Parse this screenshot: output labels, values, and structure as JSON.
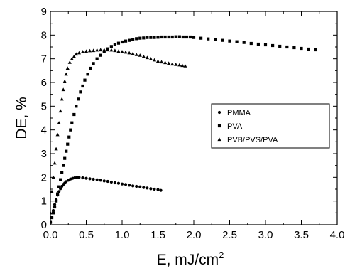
{
  "chart_data": {
    "type": "scatter",
    "xlabel": "E, mJ/cm",
    "xlabel_sup": "2",
    "ylabel": "DE, %",
    "xlim": [
      0,
      4.0
    ],
    "ylim": [
      0,
      9
    ],
    "xticks": [
      "0.0",
      "0.5",
      "1.0",
      "1.5",
      "2.0",
      "2.5",
      "3.0",
      "3.5",
      "4.0"
    ],
    "yticks": [
      "0",
      "1",
      "2",
      "3",
      "4",
      "5",
      "6",
      "7",
      "8",
      "9"
    ],
    "grid": false,
    "legend_position": "right",
    "series": [
      {
        "name": "PMMA",
        "marker": "circle",
        "x": [
          0.0,
          0.02,
          0.04,
          0.06,
          0.08,
          0.1,
          0.12,
          0.14,
          0.16,
          0.18,
          0.2,
          0.22,
          0.25,
          0.28,
          0.31,
          0.34,
          0.37,
          0.4,
          0.45,
          0.5,
          0.55,
          0.6,
          0.65,
          0.7,
          0.75,
          0.8,
          0.85,
          0.9,
          0.95,
          1.0,
          1.05,
          1.1,
          1.15,
          1.2,
          1.25,
          1.3,
          1.35,
          1.4,
          1.45,
          1.5,
          1.54
        ],
        "y": [
          0.1,
          0.3,
          0.6,
          0.85,
          1.05,
          1.25,
          1.4,
          1.52,
          1.62,
          1.7,
          1.76,
          1.82,
          1.88,
          1.93,
          1.96,
          1.98,
          2.0,
          2.0,
          1.98,
          1.96,
          1.94,
          1.92,
          1.9,
          1.88,
          1.85,
          1.83,
          1.8,
          1.77,
          1.75,
          1.72,
          1.7,
          1.67,
          1.64,
          1.62,
          1.6,
          1.57,
          1.55,
          1.52,
          1.5,
          1.48,
          1.45
        ]
      },
      {
        "name": "PVA",
        "marker": "square",
        "x": [
          0.0,
          0.02,
          0.04,
          0.06,
          0.08,
          0.1,
          0.12,
          0.14,
          0.16,
          0.18,
          0.2,
          0.22,
          0.24,
          0.26,
          0.28,
          0.3,
          0.33,
          0.36,
          0.39,
          0.42,
          0.45,
          0.48,
          0.52,
          0.56,
          0.6,
          0.65,
          0.7,
          0.75,
          0.8,
          0.85,
          0.9,
          0.95,
          1.0,
          1.05,
          1.1,
          1.15,
          1.2,
          1.25,
          1.3,
          1.35,
          1.4,
          1.45,
          1.5,
          1.55,
          1.6,
          1.65,
          1.7,
          1.75,
          1.8,
          1.85,
          1.9,
          1.95,
          2.0,
          2.1,
          2.2,
          2.3,
          2.4,
          2.5,
          2.6,
          2.7,
          2.8,
          2.9,
          3.0,
          3.1,
          3.2,
          3.3,
          3.4,
          3.5,
          3.6,
          3.7
        ],
        "y": [
          0.1,
          0.3,
          0.5,
          0.75,
          1.0,
          1.3,
          1.6,
          1.9,
          2.2,
          2.5,
          2.8,
          3.1,
          3.4,
          3.7,
          4.0,
          4.3,
          4.65,
          5.0,
          5.3,
          5.6,
          5.85,
          6.1,
          6.35,
          6.6,
          6.8,
          7.0,
          7.15,
          7.3,
          7.42,
          7.52,
          7.6,
          7.66,
          7.71,
          7.75,
          7.78,
          7.82,
          7.85,
          7.87,
          7.88,
          7.9,
          7.9,
          7.9,
          7.91,
          7.92,
          7.92,
          7.92,
          7.92,
          7.93,
          7.93,
          7.92,
          7.92,
          7.92,
          7.9,
          7.87,
          7.84,
          7.81,
          7.78,
          7.75,
          7.72,
          7.69,
          7.65,
          7.62,
          7.59,
          7.56,
          7.53,
          7.5,
          7.47,
          7.44,
          7.41,
          7.38
        ]
      },
      {
        "name": "PVB/PVS/PVA",
        "marker": "triangle",
        "x": [
          0.0,
          0.02,
          0.04,
          0.06,
          0.08,
          0.1,
          0.12,
          0.14,
          0.16,
          0.18,
          0.2,
          0.22,
          0.24,
          0.27,
          0.3,
          0.33,
          0.36,
          0.4,
          0.45,
          0.5,
          0.55,
          0.6,
          0.65,
          0.7,
          0.75,
          0.8,
          0.85,
          0.9,
          0.95,
          1.0,
          1.05,
          1.1,
          1.15,
          1.2,
          1.25,
          1.3,
          1.35,
          1.4,
          1.45,
          1.5,
          1.55,
          1.6,
          1.65,
          1.7,
          1.75,
          1.8,
          1.84,
          1.88
        ],
        "y": [
          0.5,
          1.4,
          2.0,
          2.6,
          3.2,
          3.8,
          4.3,
          4.8,
          5.3,
          5.7,
          6.05,
          6.35,
          6.6,
          6.85,
          7.0,
          7.1,
          7.2,
          7.25,
          7.3,
          7.32,
          7.34,
          7.35,
          7.37,
          7.38,
          7.38,
          7.38,
          7.37,
          7.35,
          7.32,
          7.3,
          7.28,
          7.25,
          7.22,
          7.18,
          7.15,
          7.1,
          7.05,
          7.0,
          6.95,
          6.9,
          6.87,
          6.84,
          6.81,
          6.78,
          6.76,
          6.74,
          6.72,
          6.7
        ]
      }
    ]
  }
}
